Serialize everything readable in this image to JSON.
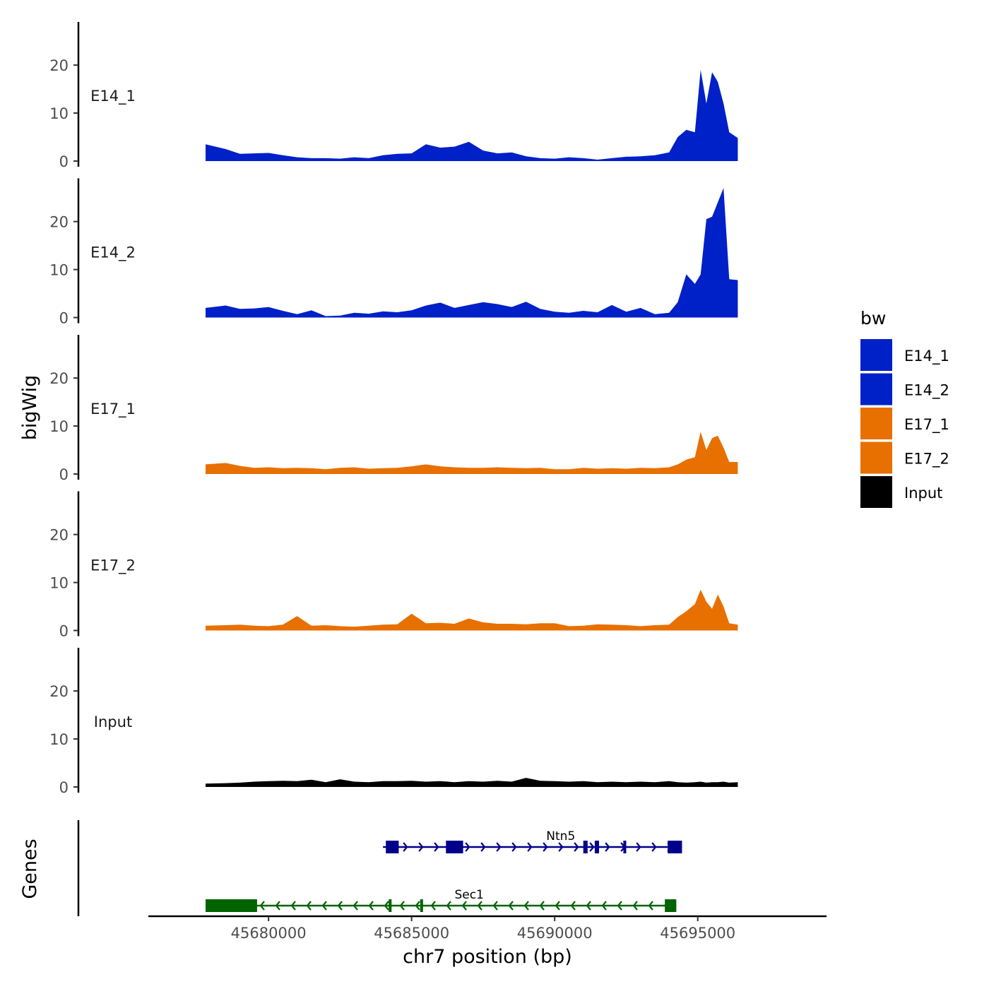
{
  "chart_data": {
    "type": "area",
    "ylabel": "bigWig",
    "xlabel": "chr7 position (bp)",
    "genes_label": "Genes",
    "xlim": [
      45675800,
      45699500
    ],
    "x_ticks": [
      45680000,
      45685000,
      45690000,
      45695000
    ],
    "x_tick_labels": [
      "45680000",
      "45685000",
      "45690000",
      "45695000"
    ],
    "ylim": [
      0,
      29
    ],
    "y_ticks": [
      0,
      10,
      20
    ],
    "y_tick_labels": [
      "0",
      "10",
      "20"
    ],
    "legend": {
      "title": "bw",
      "position": "right",
      "entries": [
        {
          "label": "E14_1",
          "color": "#0020c8"
        },
        {
          "label": "E14_2",
          "color": "#0020c8"
        },
        {
          "label": "E17_1",
          "color": "#e87000"
        },
        {
          "label": "E17_2",
          "color": "#e87000"
        },
        {
          "label": "Input",
          "color": "#000000"
        }
      ]
    },
    "x": [
      45677800,
      45678500,
      45679000,
      45679500,
      45680000,
      45680500,
      45681000,
      45681500,
      45682000,
      45682500,
      45683000,
      45683500,
      45684000,
      45684500,
      45685000,
      45685500,
      45686000,
      45686500,
      45687000,
      45687500,
      45688000,
      45688500,
      45689000,
      45689500,
      45690000,
      45690500,
      45691000,
      45691500,
      45692000,
      45692500,
      45693000,
      45693500,
      45694000,
      45694300,
      45694600,
      45694900,
      45695100,
      45695300,
      45695500,
      45695700,
      45695900,
      45696100,
      45696400
    ],
    "series": [
      {
        "name": "E14_1",
        "color": "#0020c8",
        "values": [
          3.5,
          2.5,
          1.5,
          1.6,
          1.7,
          1.2,
          0.8,
          0.6,
          0.6,
          0.5,
          0.8,
          0.6,
          1.2,
          1.5,
          1.6,
          3.5,
          2.8,
          3.0,
          4.0,
          2.2,
          1.6,
          1.8,
          1.0,
          0.6,
          0.5,
          0.8,
          0.6,
          0.3,
          0.6,
          0.9,
          1.0,
          1.2,
          1.8,
          5.0,
          6.5,
          6.0,
          19.0,
          12.0,
          18.5,
          16.5,
          12.0,
          6.0,
          4.8
        ]
      },
      {
        "name": "E14_2",
        "color": "#0020c8",
        "values": [
          2.0,
          2.5,
          1.8,
          1.9,
          2.2,
          1.4,
          0.7,
          1.5,
          0.3,
          0.4,
          1.0,
          0.8,
          1.3,
          1.1,
          1.5,
          2.5,
          3.1,
          2.0,
          2.6,
          3.2,
          2.8,
          2.2,
          3.3,
          1.8,
          1.2,
          1.0,
          1.4,
          1.1,
          2.6,
          1.2,
          2.0,
          0.7,
          1.0,
          3.2,
          9.0,
          7.0,
          9.0,
          20.5,
          21.0,
          24.0,
          27.0,
          8.0,
          7.8
        ]
      },
      {
        "name": "E17_1",
        "color": "#e87000",
        "values": [
          2.0,
          2.3,
          1.7,
          1.3,
          1.4,
          1.2,
          1.3,
          1.2,
          1.0,
          1.3,
          1.4,
          1.1,
          1.2,
          1.3,
          1.6,
          2.0,
          1.6,
          1.4,
          1.3,
          1.3,
          1.4,
          1.3,
          1.2,
          1.3,
          1.0,
          1.0,
          1.3,
          1.1,
          1.2,
          1.1,
          1.3,
          1.2,
          1.4,
          2.0,
          3.0,
          3.5,
          8.8,
          5.0,
          7.5,
          8.0,
          5.5,
          2.5,
          2.5
        ]
      },
      {
        "name": "E17_2",
        "color": "#e87000",
        "values": [
          1.0,
          1.1,
          1.2,
          1.0,
          0.9,
          1.2,
          3.0,
          1.0,
          1.1,
          0.9,
          0.8,
          1.0,
          1.2,
          1.3,
          3.5,
          1.5,
          1.6,
          1.4,
          2.5,
          1.7,
          1.4,
          1.4,
          1.3,
          1.5,
          1.5,
          0.9,
          1.0,
          1.3,
          1.2,
          1.1,
          0.9,
          1.1,
          1.2,
          2.8,
          4.0,
          5.5,
          8.5,
          6.0,
          4.5,
          7.5,
          5.0,
          1.5,
          1.2
        ]
      },
      {
        "name": "Input",
        "color": "#000000",
        "values": [
          0.7,
          0.8,
          0.9,
          1.1,
          1.2,
          1.3,
          1.2,
          1.5,
          1.0,
          1.6,
          1.1,
          1.0,
          1.2,
          1.2,
          1.3,
          1.1,
          1.2,
          1.0,
          1.2,
          1.1,
          1.3,
          1.1,
          1.9,
          1.3,
          1.2,
          1.1,
          1.2,
          1.0,
          1.1,
          1.0,
          1.1,
          1.0,
          1.2,
          1.0,
          0.9,
          1.0,
          1.1,
          0.9,
          1.0,
          1.0,
          1.1,
          0.9,
          1.0
        ]
      }
    ],
    "genes": [
      {
        "name": "Ntn5",
        "strand": "+",
        "color": "#00008b",
        "start": 45684000,
        "end": 45694450,
        "exons": [
          [
            45684100,
            45684550
          ],
          [
            45686200,
            45686800
          ],
          [
            45691000,
            45691150
          ],
          [
            45691400,
            45691550
          ],
          [
            45692400,
            45692500
          ],
          [
            45693950,
            45694450
          ]
        ]
      },
      {
        "name": "Sec1",
        "strand": "-",
        "color": "#006400",
        "start": 45677800,
        "end": 45694250,
        "exons": [
          [
            45677800,
            45679600
          ],
          [
            45684200,
            45684300
          ],
          [
            45685300,
            45685400
          ],
          [
            45693850,
            45694250
          ]
        ]
      }
    ]
  }
}
